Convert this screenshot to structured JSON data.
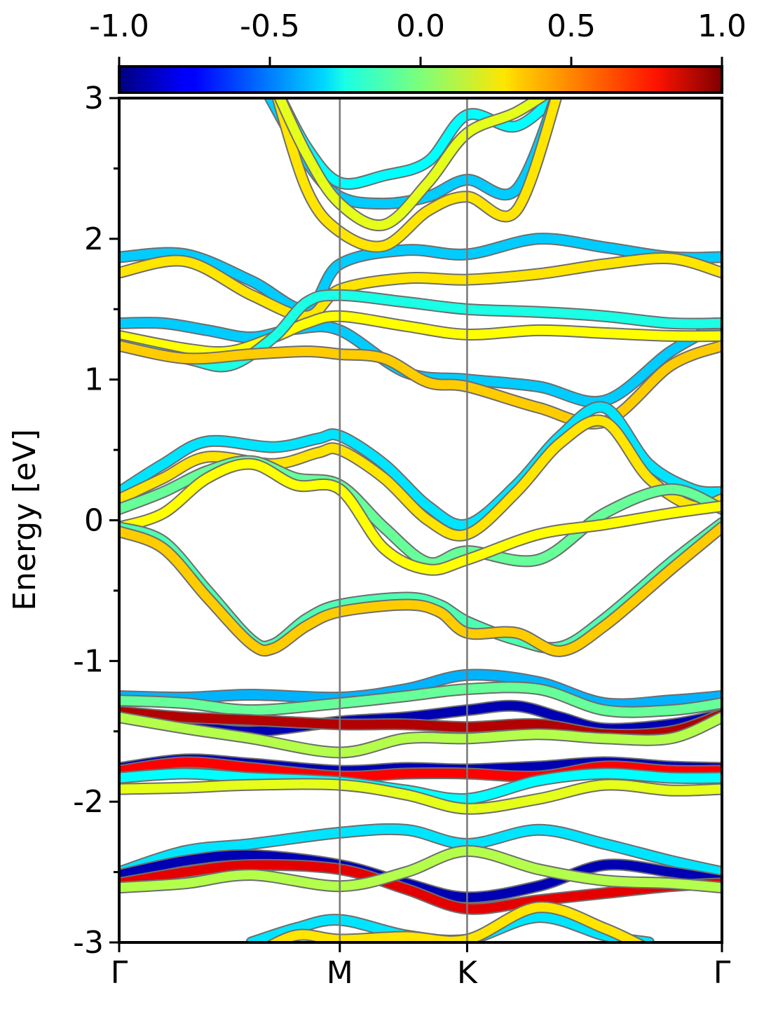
{
  "chart_data": {
    "type": "line",
    "title": "",
    "ylabel": "Energy [eV]",
    "xlabel": "",
    "ylim": [
      -3,
      3
    ],
    "yticks": [
      "-3",
      "-2",
      "-1",
      "0",
      "1",
      "2",
      "3"
    ],
    "kpath": {
      "labels": [
        "Γ",
        "M",
        "K",
        "Γ"
      ],
      "positions": [
        0,
        1,
        1.577,
        2.732
      ]
    },
    "colorbar": {
      "range": [
        -1.0,
        1.0
      ],
      "tick_labels": [
        "-1.0",
        "-0.5",
        "0.0",
        "0.5",
        "1.0"
      ],
      "colormap": "jet"
    },
    "series": [
      {
        "x": [
          0,
          0.3,
          0.6,
          0.85,
          1.0,
          1.3,
          1.577,
          1.9,
          2.2,
          2.5,
          2.732
        ],
        "y": [
          1.87,
          1.89,
          1.7,
          1.5,
          1.82,
          1.92,
          1.89,
          2.0,
          1.94,
          1.87,
          1.87
        ],
        "c": -0.35
      },
      {
        "x": [
          0,
          0.3,
          0.6,
          0.85,
          1.0,
          1.3,
          1.577,
          1.9,
          2.2,
          2.5,
          2.732
        ],
        "y": [
          1.76,
          1.84,
          1.6,
          1.45,
          1.64,
          1.72,
          1.71,
          1.75,
          1.82,
          1.86,
          1.76
        ],
        "c": 0.3
      },
      {
        "x": [
          0,
          0.2,
          0.4,
          0.6,
          0.8,
          1.0,
          1.3,
          1.577,
          1.9,
          2.2,
          2.5,
          2.732
        ],
        "y": [
          1.4,
          1.4,
          1.35,
          1.3,
          1.36,
          1.35,
          1.05,
          1.0,
          0.95,
          0.85,
          1.2,
          1.4
        ],
        "c": -0.35
      },
      {
        "x": [
          0,
          0.3,
          0.5,
          0.7,
          0.85,
          1.0,
          1.3,
          1.577,
          1.9,
          2.2,
          2.5,
          2.732
        ],
        "y": [
          1.31,
          1.22,
          1.2,
          1.3,
          1.4,
          1.45,
          1.38,
          1.32,
          1.35,
          1.33,
          1.31,
          1.31
        ],
        "c": 0.25
      },
      {
        "x": [
          0,
          0.3,
          0.5,
          0.7,
          0.85,
          1.0,
          1.3,
          1.577,
          1.9,
          2.2,
          2.5,
          2.732
        ],
        "y": [
          1.25,
          1.15,
          1.1,
          1.3,
          1.55,
          1.6,
          1.55,
          1.5,
          1.48,
          1.45,
          1.4,
          1.4
        ],
        "c": -0.2
      },
      {
        "x": [
          0,
          0.3,
          0.6,
          0.85,
          1.0,
          1.2,
          1.4,
          1.577,
          1.9,
          2.2,
          2.5,
          2.732
        ],
        "y": [
          1.24,
          1.15,
          1.18,
          1.2,
          1.18,
          1.15,
          0.98,
          0.95,
          0.8,
          0.7,
          1.1,
          1.24
        ],
        "c": 0.35
      },
      {
        "x": [
          0,
          0.2,
          0.4,
          0.7,
          0.9,
          1.0,
          1.2,
          1.4,
          1.577,
          1.8,
          2.0,
          2.2,
          2.4,
          2.6,
          2.732
        ],
        "y": [
          0.2,
          0.4,
          0.56,
          0.52,
          0.58,
          0.6,
          0.4,
          0.1,
          -0.03,
          0.25,
          0.6,
          0.8,
          0.4,
          0.22,
          0.2
        ],
        "c": -0.3
      },
      {
        "x": [
          0,
          0.2,
          0.4,
          0.7,
          0.9,
          1.0,
          1.2,
          1.4,
          1.577,
          1.8,
          2.0,
          2.2,
          2.4,
          2.6,
          2.732
        ],
        "y": [
          0.15,
          0.3,
          0.45,
          0.4,
          0.48,
          0.5,
          0.3,
          0.0,
          -0.1,
          0.2,
          0.55,
          0.7,
          0.3,
          0.1,
          0.15
        ],
        "c": 0.3
      },
      {
        "x": [
          0,
          0.2,
          0.4,
          0.6,
          0.8,
          1.0,
          1.2,
          1.4,
          1.577,
          1.9,
          2.2,
          2.5,
          2.732
        ],
        "y": [
          0.08,
          0.2,
          0.35,
          0.42,
          0.3,
          0.25,
          -0.05,
          -0.3,
          -0.22,
          -0.28,
          0.05,
          0.22,
          0.08
        ],
        "c": -0.05
      },
      {
        "x": [
          0,
          0.2,
          0.4,
          0.6,
          0.8,
          1.0,
          1.2,
          1.4,
          1.577,
          1.9,
          2.2,
          2.5,
          2.732
        ],
        "y": [
          -0.05,
          0.05,
          0.3,
          0.4,
          0.25,
          0.22,
          -0.2,
          -0.35,
          -0.28,
          -0.1,
          -0.03,
          0.05,
          0.1
        ],
        "c": 0.25
      },
      {
        "x": [
          0,
          0.2,
          0.4,
          0.6,
          0.7,
          0.85,
          1.0,
          1.3,
          1.45,
          1.577,
          1.8,
          2.0,
          2.2,
          2.5,
          2.732
        ],
        "y": [
          -0.05,
          -0.15,
          -0.5,
          -0.85,
          -0.88,
          -0.7,
          -0.6,
          -0.55,
          -0.6,
          -0.72,
          -0.85,
          -0.9,
          -0.7,
          -0.3,
          -0.02
        ],
        "c": -0.1
      },
      {
        "x": [
          0,
          0.2,
          0.4,
          0.6,
          0.7,
          0.85,
          1.0,
          1.3,
          1.45,
          1.577,
          1.8,
          2.0,
          2.2,
          2.5,
          2.732
        ],
        "y": [
          -0.08,
          -0.2,
          -0.55,
          -0.88,
          -0.91,
          -0.75,
          -0.65,
          -0.6,
          -0.65,
          -0.8,
          -0.8,
          -0.93,
          -0.75,
          -0.35,
          -0.05
        ],
        "c": 0.35
      },
      {
        "x": [
          0,
          0.3,
          0.6,
          1.0,
          1.3,
          1.577,
          1.9,
          2.2,
          2.5,
          2.732
        ],
        "y": [
          -1.25,
          -1.26,
          -1.24,
          -1.26,
          -1.2,
          -1.1,
          -1.15,
          -1.3,
          -1.28,
          -1.25
        ],
        "c": -0.4
      },
      {
        "x": [
          0,
          0.3,
          0.6,
          1.0,
          1.3,
          1.577,
          1.9,
          2.2,
          2.5,
          2.732
        ],
        "y": [
          -1.28,
          -1.3,
          -1.35,
          -1.3,
          -1.25,
          -1.2,
          -1.2,
          -1.35,
          -1.35,
          -1.3
        ],
        "c": -0.05
      },
      {
        "x": [
          0,
          0.3,
          0.6,
          1.0,
          1.3,
          1.577,
          1.8,
          2.0,
          2.2,
          2.5,
          2.732
        ],
        "y": [
          -1.38,
          -1.45,
          -1.5,
          -1.43,
          -1.4,
          -1.35,
          -1.32,
          -1.4,
          -1.48,
          -1.45,
          -1.38
        ],
        "c": -0.9
      },
      {
        "x": [
          0,
          0.3,
          0.6,
          1.0,
          1.3,
          1.577,
          1.9,
          2.2,
          2.5,
          2.732
        ],
        "y": [
          -1.36,
          -1.4,
          -1.42,
          -1.45,
          -1.45,
          -1.47,
          -1.45,
          -1.52,
          -1.5,
          -1.38
        ],
        "c": 0.9
      },
      {
        "x": [
          0,
          0.3,
          0.6,
          1.0,
          1.3,
          1.577,
          1.9,
          2.2,
          2.5,
          2.732
        ],
        "y": [
          -1.4,
          -1.48,
          -1.55,
          -1.65,
          -1.55,
          -1.55,
          -1.52,
          -1.55,
          -1.55,
          -1.4
        ],
        "c": 0.1
      },
      {
        "x": [
          0,
          0.3,
          0.6,
          1.0,
          1.3,
          1.577,
          1.9,
          2.2,
          2.5,
          2.732
        ],
        "y": [
          -1.76,
          -1.7,
          -1.73,
          -1.78,
          -1.76,
          -1.77,
          -1.75,
          -1.72,
          -1.75,
          -1.76
        ],
        "c": -0.9
      },
      {
        "x": [
          0,
          0.3,
          0.6,
          1.0,
          1.3,
          1.577,
          1.9,
          2.2,
          2.5,
          2.732
        ],
        "y": [
          -1.78,
          -1.72,
          -1.76,
          -1.82,
          -1.8,
          -1.8,
          -1.82,
          -1.75,
          -1.78,
          -1.78
        ],
        "c": 0.75
      },
      {
        "x": [
          0,
          0.3,
          0.6,
          1.0,
          1.3,
          1.577,
          1.9,
          2.2,
          2.5,
          2.732
        ],
        "y": [
          -1.83,
          -1.8,
          -1.83,
          -1.86,
          -1.92,
          -1.98,
          -1.85,
          -1.8,
          -1.83,
          -1.83
        ],
        "c": -0.25
      },
      {
        "x": [
          0,
          0.3,
          0.6,
          1.0,
          1.3,
          1.577,
          1.9,
          2.2,
          2.5,
          2.732
        ],
        "y": [
          -1.91,
          -1.9,
          -1.88,
          -1.88,
          -1.95,
          -2.05,
          -1.98,
          -1.88,
          -1.92,
          -1.91
        ],
        "c": 0.2
      },
      {
        "x": [
          0,
          0.3,
          0.6,
          1.0,
          1.3,
          1.577,
          1.9,
          2.2,
          2.5,
          2.732
        ],
        "y": [
          -2.5,
          -2.35,
          -2.3,
          -2.22,
          -2.2,
          -2.3,
          -2.2,
          -2.3,
          -2.42,
          -2.5
        ],
        "c": -0.3
      },
      {
        "x": [
          0,
          0.3,
          0.6,
          1.0,
          1.3,
          1.577,
          1.9,
          2.2,
          2.5,
          2.732
        ],
        "y": [
          -2.52,
          -2.42,
          -2.38,
          -2.45,
          -2.58,
          -2.68,
          -2.6,
          -2.45,
          -2.5,
          -2.56
        ],
        "c": -0.9
      },
      {
        "x": [
          0,
          0.3,
          0.6,
          1.0,
          1.3,
          1.577,
          1.9,
          2.2,
          2.5,
          2.732
        ],
        "y": [
          -2.58,
          -2.5,
          -2.45,
          -2.48,
          -2.62,
          -2.76,
          -2.7,
          -2.65,
          -2.6,
          -2.58
        ],
        "c": 0.8
      },
      {
        "x": [
          0,
          0.3,
          0.6,
          1.0,
          1.3,
          1.577,
          1.9,
          2.2,
          2.5,
          2.732
        ],
        "y": [
          -2.61,
          -2.58,
          -2.52,
          -2.6,
          -2.5,
          -2.35,
          -2.48,
          -2.56,
          -2.58,
          -2.61
        ],
        "c": 0.1
      },
      {
        "x": [
          0.6,
          0.8,
          1.0,
          1.3,
          1.577,
          1.9,
          2.2,
          2.4
        ],
        "y": [
          -3.0,
          -2.9,
          -2.84,
          -2.95,
          -2.98,
          -2.82,
          -2.95,
          -3.0
        ],
        "c": -0.3
      },
      {
        "x": [
          0.6,
          0.8,
          1.0,
          1.3,
          1.577,
          1.9,
          2.2,
          2.4
        ],
        "y": [
          -3.1,
          -2.95,
          -2.98,
          -2.96,
          -2.98,
          -2.75,
          -2.9,
          -3.05
        ],
        "c": 0.3
      },
      {
        "x": [
          0.7,
          0.85,
          1.0,
          1.2,
          1.4,
          1.577,
          1.8,
          2.0
        ],
        "y": [
          3.1,
          2.65,
          2.4,
          2.45,
          2.55,
          2.88,
          2.8,
          3.05
        ],
        "c": -0.25
      },
      {
        "x": [
          0.65,
          0.85,
          1.0,
          1.2,
          1.4,
          1.577,
          1.8,
          2.0
        ],
        "y": [
          3.1,
          2.55,
          2.3,
          2.25,
          2.3,
          2.42,
          2.35,
          3.1
        ],
        "c": -0.35
      },
      {
        "x": [
          0.7,
          0.85,
          1.0,
          1.2,
          1.4,
          1.577,
          1.8,
          2.0
        ],
        "y": [
          3.1,
          2.35,
          2.05,
          1.95,
          2.2,
          2.3,
          2.2,
          3.1
        ],
        "c": 0.3
      },
      {
        "x": [
          0.7,
          0.85,
          1.0,
          1.2,
          1.4,
          1.577,
          1.8,
          2.0
        ],
        "y": [
          3.1,
          2.6,
          2.25,
          2.1,
          2.4,
          2.75,
          2.9,
          3.1
        ],
        "c": 0.2
      }
    ]
  }
}
